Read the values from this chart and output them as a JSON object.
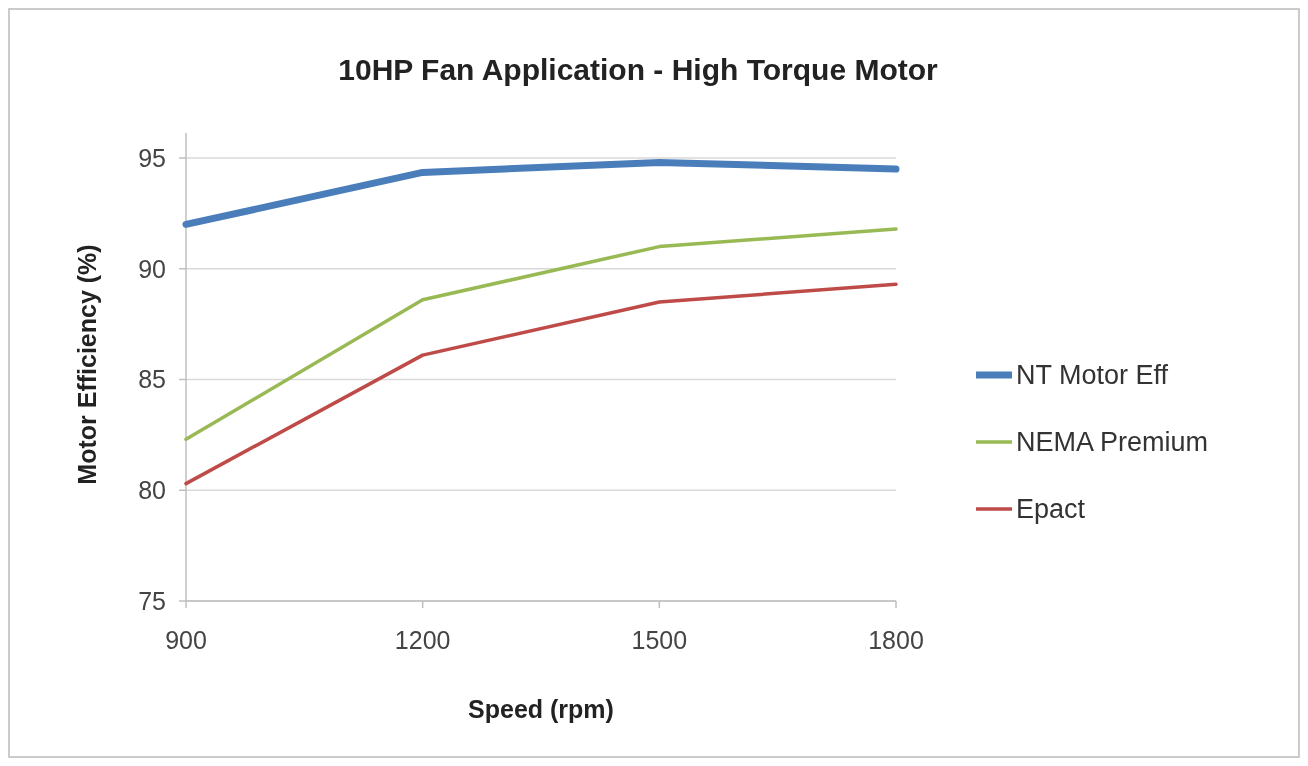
{
  "chart_data": {
    "type": "line",
    "title": "10HP Fan Application - High Torque Motor",
    "xlabel": "Speed (rpm)",
    "ylabel": "Motor Efficiency (%)",
    "x": [
      900,
      1200,
      1500,
      1800
    ],
    "series": [
      {
        "name": "NT Motor Eff",
        "color": "#4a7ebb",
        "values": [
          92.0,
          94.35,
          94.8,
          94.5
        ]
      },
      {
        "name": "NEMA Premium",
        "color": "#98b954",
        "values": [
          82.3,
          88.6,
          91.0,
          91.8
        ]
      },
      {
        "name": "Epact",
        "color": "#be4b48",
        "values": [
          80.3,
          86.1,
          88.5,
          89.3
        ]
      }
    ],
    "xlim": [
      900,
      1800
    ],
    "xticks": [
      900,
      1200,
      1500,
      1800
    ],
    "ylim": [
      75,
      95
    ],
    "yticks": [
      75,
      80,
      85,
      90,
      95
    ],
    "grid": "y",
    "legend": "right",
    "marker": "none",
    "line_style": "solid"
  }
}
